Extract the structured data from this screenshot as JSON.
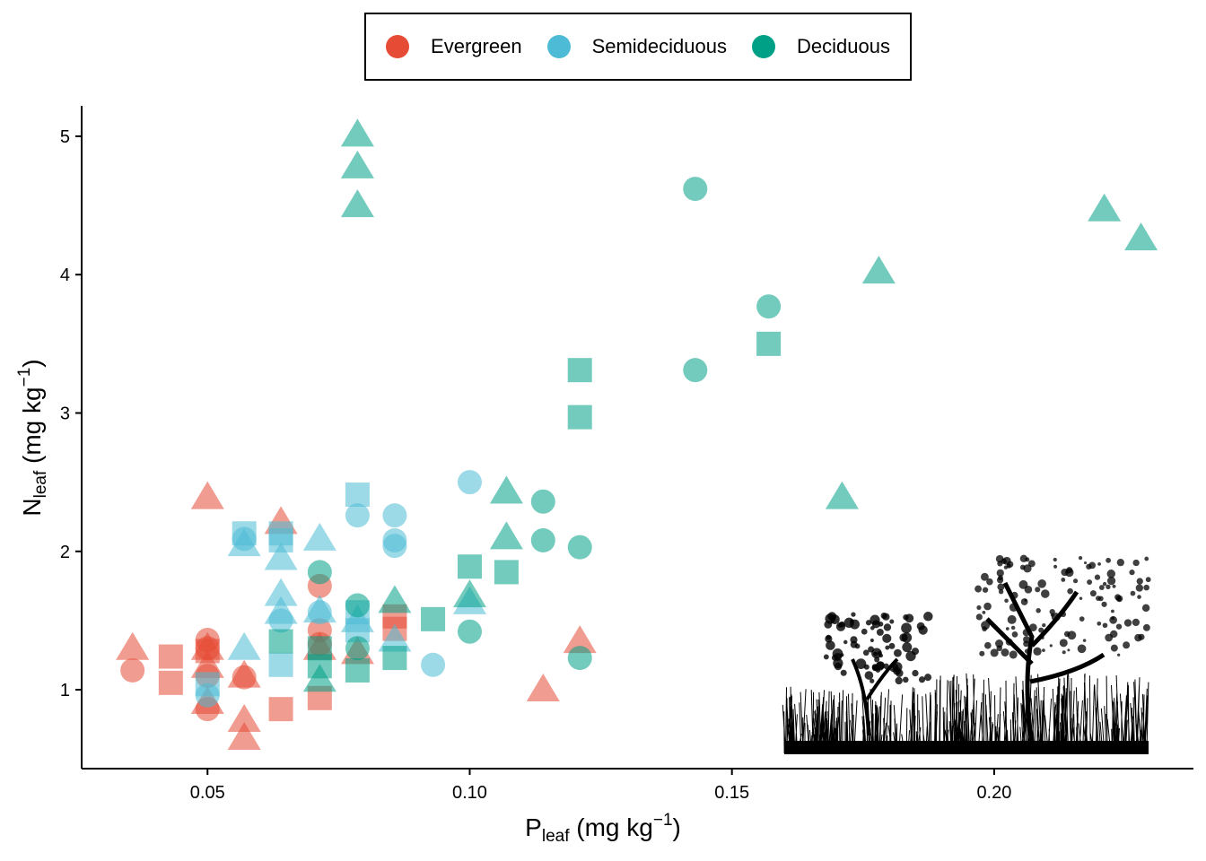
{
  "chart_data": {
    "type": "scatter",
    "title": "",
    "xlabel": {
      "main": "P",
      "sub": "leaf",
      "unit_pre": " (mg kg",
      "sup": "−1",
      "unit_post": ")"
    },
    "ylabel": {
      "main": "N",
      "sub": "leaf",
      "unit_pre": " (mg kg",
      "sup": "−1",
      "unit_post": ")"
    },
    "xlim": [
      0.026,
      0.238
    ],
    "ylim": [
      0.43,
      5.22
    ],
    "xticks": [
      0.05,
      0.1,
      0.15,
      0.2
    ],
    "xtick_labels": [
      "0.05",
      "0.10",
      "0.15",
      "0.20"
    ],
    "yticks": [
      1,
      2,
      3,
      4,
      5
    ],
    "ytick_labels": [
      "1",
      "2",
      "3",
      "4",
      "5"
    ],
    "grid": false,
    "legend_position": "top",
    "colors": {
      "Evergreen": "#E64B35",
      "Semideciduous": "#4DBBD5",
      "Deciduous": "#00A087"
    },
    "series": [
      {
        "name": "Evergreen",
        "points": [
          [
            0.0357,
            1.3,
            "triangle"
          ],
          [
            0.0357,
            1.14,
            "circle"
          ],
          [
            0.043,
            1.24,
            "square"
          ],
          [
            0.043,
            1.05,
            "square"
          ],
          [
            0.05,
            2.39,
            "triangle"
          ],
          [
            0.05,
            1.36,
            "circle"
          ],
          [
            0.05,
            1.3,
            "circle"
          ],
          [
            0.05,
            1.1,
            "circle"
          ],
          [
            0.05,
            0.86,
            "circle"
          ],
          [
            0.05,
            1.3,
            "triangle"
          ],
          [
            0.05,
            1.17,
            "triangle"
          ],
          [
            0.05,
            0.91,
            "triangle"
          ],
          [
            0.05,
            1.28,
            "square"
          ],
          [
            0.057,
            1.1,
            "triangle"
          ],
          [
            0.057,
            1.09,
            "circle"
          ],
          [
            0.057,
            0.78,
            "triangle"
          ],
          [
            0.057,
            0.65,
            "triangle"
          ],
          [
            0.064,
            2.21,
            "triangle"
          ],
          [
            0.064,
            0.86,
            "square"
          ],
          [
            0.0714,
            1.75,
            "circle"
          ],
          [
            0.0714,
            1.43,
            "circle"
          ],
          [
            0.0714,
            1.3,
            "triangle"
          ],
          [
            0.0714,
            1.33,
            "circle"
          ],
          [
            0.0714,
            0.94,
            "square"
          ],
          [
            0.0786,
            1.27,
            "triangle"
          ],
          [
            0.0857,
            1.53,
            "square"
          ],
          [
            0.0857,
            1.44,
            "square"
          ],
          [
            0.114,
            1.0,
            "triangle"
          ],
          [
            0.121,
            1.35,
            "triangle"
          ]
        ]
      },
      {
        "name": "Semideciduous",
        "points": [
          [
            0.057,
            2.05,
            "triangle"
          ],
          [
            0.057,
            2.09,
            "circle"
          ],
          [
            0.057,
            2.13,
            "square"
          ],
          [
            0.064,
            1.95,
            "triangle"
          ],
          [
            0.064,
            2.08,
            "square"
          ],
          [
            0.064,
            2.13,
            "square"
          ],
          [
            0.064,
            1.69,
            "triangle"
          ],
          [
            0.064,
            1.56,
            "triangle"
          ],
          [
            0.0714,
            2.09,
            "triangle"
          ],
          [
            0.0714,
            1.57,
            "triangle"
          ],
          [
            0.0714,
            1.56,
            "circle"
          ],
          [
            0.0786,
            2.41,
            "square"
          ],
          [
            0.0786,
            2.26,
            "circle"
          ],
          [
            0.0857,
            2.26,
            "circle"
          ],
          [
            0.0857,
            2.08,
            "circle"
          ],
          [
            0.0857,
            2.04,
            "circle"
          ],
          [
            0.057,
            1.3,
            "triangle"
          ],
          [
            0.05,
            1.04,
            "square"
          ],
          [
            0.05,
            0.96,
            "circle"
          ],
          [
            0.064,
            1.18,
            "square"
          ],
          [
            0.0786,
            1.56,
            "square"
          ],
          [
            0.0786,
            1.43,
            "square"
          ],
          [
            0.0786,
            1.5,
            "triangle"
          ],
          [
            0.093,
            1.18,
            "circle"
          ],
          [
            0.1,
            2.5,
            "circle"
          ],
          [
            0.1,
            1.63,
            "triangle"
          ],
          [
            0.0857,
            1.36,
            "triangle"
          ],
          [
            0.064,
            1.5,
            "circle"
          ]
        ]
      },
      {
        "name": "Deciduous",
        "points": [
          [
            0.0786,
            5.01,
            "triangle"
          ],
          [
            0.0786,
            4.78,
            "triangle"
          ],
          [
            0.0786,
            4.5,
            "triangle"
          ],
          [
            0.143,
            4.62,
            "circle"
          ],
          [
            0.143,
            3.31,
            "circle"
          ],
          [
            0.157,
            3.77,
            "circle"
          ],
          [
            0.157,
            3.5,
            "square"
          ],
          [
            0.178,
            4.02,
            "triangle"
          ],
          [
            0.171,
            2.39,
            "triangle"
          ],
          [
            0.221,
            4.47,
            "triangle"
          ],
          [
            0.228,
            4.26,
            "triangle"
          ],
          [
            0.121,
            3.31,
            "square"
          ],
          [
            0.121,
            2.97,
            "square"
          ],
          [
            0.107,
            2.43,
            "triangle"
          ],
          [
            0.107,
            2.1,
            "triangle"
          ],
          [
            0.114,
            2.36,
            "circle"
          ],
          [
            0.114,
            2.08,
            "circle"
          ],
          [
            0.121,
            2.03,
            "circle"
          ],
          [
            0.1,
            1.89,
            "square"
          ],
          [
            0.107,
            1.85,
            "square"
          ],
          [
            0.1,
            1.68,
            "triangle"
          ],
          [
            0.1,
            1.42,
            "circle"
          ],
          [
            0.093,
            1.51,
            "square"
          ],
          [
            0.121,
            1.23,
            "circle"
          ],
          [
            0.0714,
            1.85,
            "circle"
          ],
          [
            0.064,
            1.35,
            "square"
          ],
          [
            0.0714,
            1.17,
            "square"
          ],
          [
            0.0714,
            1.3,
            "square"
          ],
          [
            0.0786,
            1.61,
            "circle"
          ],
          [
            0.0786,
            1.14,
            "square"
          ],
          [
            0.0857,
            1.64,
            "triangle"
          ],
          [
            0.0857,
            1.23,
            "square"
          ],
          [
            0.0714,
            1.07,
            "triangle"
          ],
          [
            0.0786,
            1.3,
            "circle"
          ]
        ]
      }
    ]
  },
  "legend": {
    "items": [
      "Evergreen",
      "Semideciduous",
      "Deciduous"
    ]
  }
}
